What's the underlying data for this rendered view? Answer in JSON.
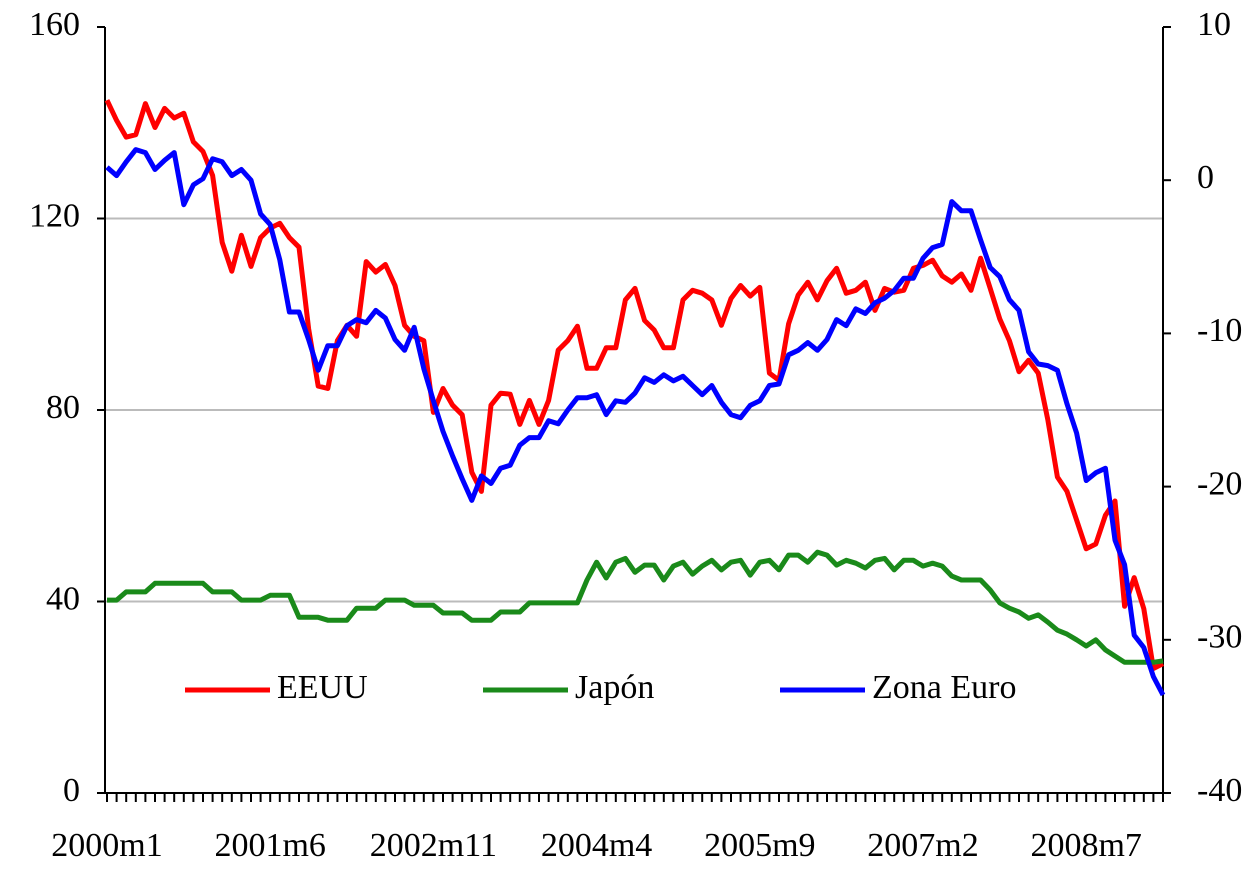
{
  "chart_data": {
    "type": "line",
    "categories": [
      "2000m1",
      null,
      null,
      null,
      null,
      null,
      null,
      null,
      null,
      null,
      null,
      null,
      null,
      null,
      null,
      null,
      null,
      "2001m6",
      null,
      null,
      null,
      null,
      null,
      null,
      null,
      null,
      null,
      null,
      null,
      null,
      null,
      null,
      null,
      null,
      "2002m11",
      null,
      null,
      null,
      null,
      null,
      null,
      null,
      null,
      null,
      null,
      null,
      null,
      null,
      null,
      null,
      null,
      "2004m4",
      null,
      null,
      null,
      null,
      null,
      null,
      null,
      null,
      null,
      null,
      null,
      null,
      null,
      null,
      null,
      null,
      "2005m9",
      null,
      null,
      null,
      null,
      null,
      null,
      null,
      null,
      null,
      null,
      null,
      null,
      null,
      null,
      null,
      null,
      "2007m2",
      null,
      null,
      null,
      null,
      null,
      null,
      null,
      null,
      null,
      null,
      null,
      null,
      null,
      null,
      null,
      null,
      "2008m7",
      null,
      null,
      null,
      null,
      null,
      null,
      null,
      null
    ],
    "series": [
      {
        "name": "EEUU",
        "color": "#ff0000",
        "axis": "y",
        "values": [
          144.7,
          140.5,
          137,
          137.5,
          144,
          139,
          143,
          141,
          142,
          136,
          134,
          129,
          115,
          109,
          116.5,
          110,
          116,
          118,
          119,
          116,
          114,
          97,
          85,
          84.5,
          94.5,
          97.7,
          95.4,
          111,
          108.8,
          110.4,
          106,
          97.7,
          95.4,
          94.5,
          79.5,
          84.5,
          81,
          79,
          67,
          63,
          81,
          83.5,
          83.3,
          77,
          82,
          77,
          82,
          92.5,
          94.5,
          97.5,
          88.7,
          88.7,
          93,
          93,
          103,
          105.4,
          98.7,
          96.7,
          93,
          93,
          103,
          105,
          104.4,
          103,
          97.7,
          103.3,
          106,
          103.8,
          105.6,
          87.7,
          86.2,
          98,
          104,
          106.7,
          103,
          107,
          109.6,
          104.4,
          105,
          106.7,
          100.8,
          105.4,
          104.6,
          105,
          109.6,
          110.2,
          111.3,
          108,
          106.7,
          108.4,
          105,
          111.7,
          105.4,
          99,
          94.5,
          88,
          90.4,
          87.7,
          78,
          66,
          63,
          57,
          51,
          52,
          58,
          61,
          39,
          45,
          38.5,
          26,
          27
        ]
      },
      {
        "name": "Japón",
        "color": "#1a8a1a",
        "axis": "y",
        "values": [
          40.3,
          40.3,
          42,
          42,
          42,
          43.8,
          43.8,
          43.8,
          43.8,
          43.8,
          43.8,
          42,
          42,
          42,
          40.3,
          40.3,
          40.3,
          41.3,
          41.3,
          41.3,
          36.7,
          36.7,
          36.7,
          36.1,
          36.1,
          36.1,
          38.6,
          38.6,
          38.6,
          40.3,
          40.3,
          40.3,
          39.2,
          39.2,
          39.2,
          37.6,
          37.6,
          37.6,
          36.1,
          36.1,
          36.1,
          37.8,
          37.8,
          37.8,
          39.7,
          39.7,
          39.7,
          39.7,
          39.7,
          39.7,
          44.5,
          48.2,
          44.9,
          48.2,
          49,
          46.1,
          47.6,
          47.6,
          44.5,
          47.4,
          48.2,
          45.7,
          47.4,
          48.6,
          46.6,
          48.2,
          48.6,
          45.5,
          48.2,
          48.6,
          46.6,
          49.7,
          49.7,
          48.2,
          50.3,
          49.7,
          47.6,
          48.6,
          48,
          47,
          48.6,
          49,
          46.6,
          48.6,
          48.6,
          47.4,
          48,
          47.4,
          45.3,
          44.5,
          44.5,
          44.5,
          42.4,
          39.7,
          38.6,
          37.8,
          36.5,
          37.2,
          35.7,
          34,
          33.2,
          32,
          30.7,
          32,
          29.9,
          28.6,
          27.3,
          27.3,
          27.3,
          27.3,
          27.6
        ]
      },
      {
        "name": "Zona Euro",
        "color": "#0000ff",
        "axis": "y2",
        "values": [
          0.85,
          0.3,
          1.2,
          2,
          1.8,
          0.7,
          1.3,
          1.8,
          -1.6,
          -0.3,
          0.1,
          1.4,
          1.2,
          0.3,
          0.7,
          0,
          -2.2,
          -2.9,
          -5.2,
          -8.6,
          -8.6,
          -10.4,
          -12.4,
          -10.8,
          -10.8,
          -9.5,
          -9.1,
          -9.3,
          -8.5,
          -9,
          -10.4,
          -11.1,
          -9.6,
          -12.3,
          -14.4,
          -16.4,
          -18,
          -19.5,
          -20.9,
          -19.3,
          -19.8,
          -18.8,
          -18.6,
          -17.3,
          -16.8,
          -16.8,
          -15.7,
          -15.9,
          -15,
          -14.2,
          -14.2,
          -14,
          -15.3,
          -14.4,
          -14.5,
          -13.9,
          -12.9,
          -13.2,
          -12.7,
          -13.1,
          -12.8,
          -13.4,
          -14,
          -13.4,
          -14.5,
          -15.3,
          -15.5,
          -14.7,
          -14.4,
          -13.4,
          -13.3,
          -11.4,
          -11.1,
          -10.6,
          -11.1,
          -10.4,
          -9.1,
          -9.5,
          -8.4,
          -8.7,
          -8,
          -7.7,
          -7.2,
          -6.4,
          -6.4,
          -5.1,
          -4.4,
          -4.2,
          -1.4,
          -2,
          -2,
          -3.9,
          -5.7,
          -6.3,
          -7.8,
          -8.5,
          -11.2,
          -12,
          -12.1,
          -12.4,
          -14.6,
          -16.5,
          -19.6,
          -19.1,
          -18.8,
          -23.5,
          -25.1,
          -29.7,
          -30.5,
          -32.4,
          -33.6
        ]
      }
    ],
    "ylim": [
      0,
      160
    ],
    "yticks": [
      0,
      40,
      80,
      120,
      160
    ],
    "y2lim": [
      -40,
      10
    ],
    "y2ticks": [
      -40,
      -30,
      -20,
      -10,
      0,
      10
    ],
    "grid": true,
    "legend": "bottom"
  }
}
